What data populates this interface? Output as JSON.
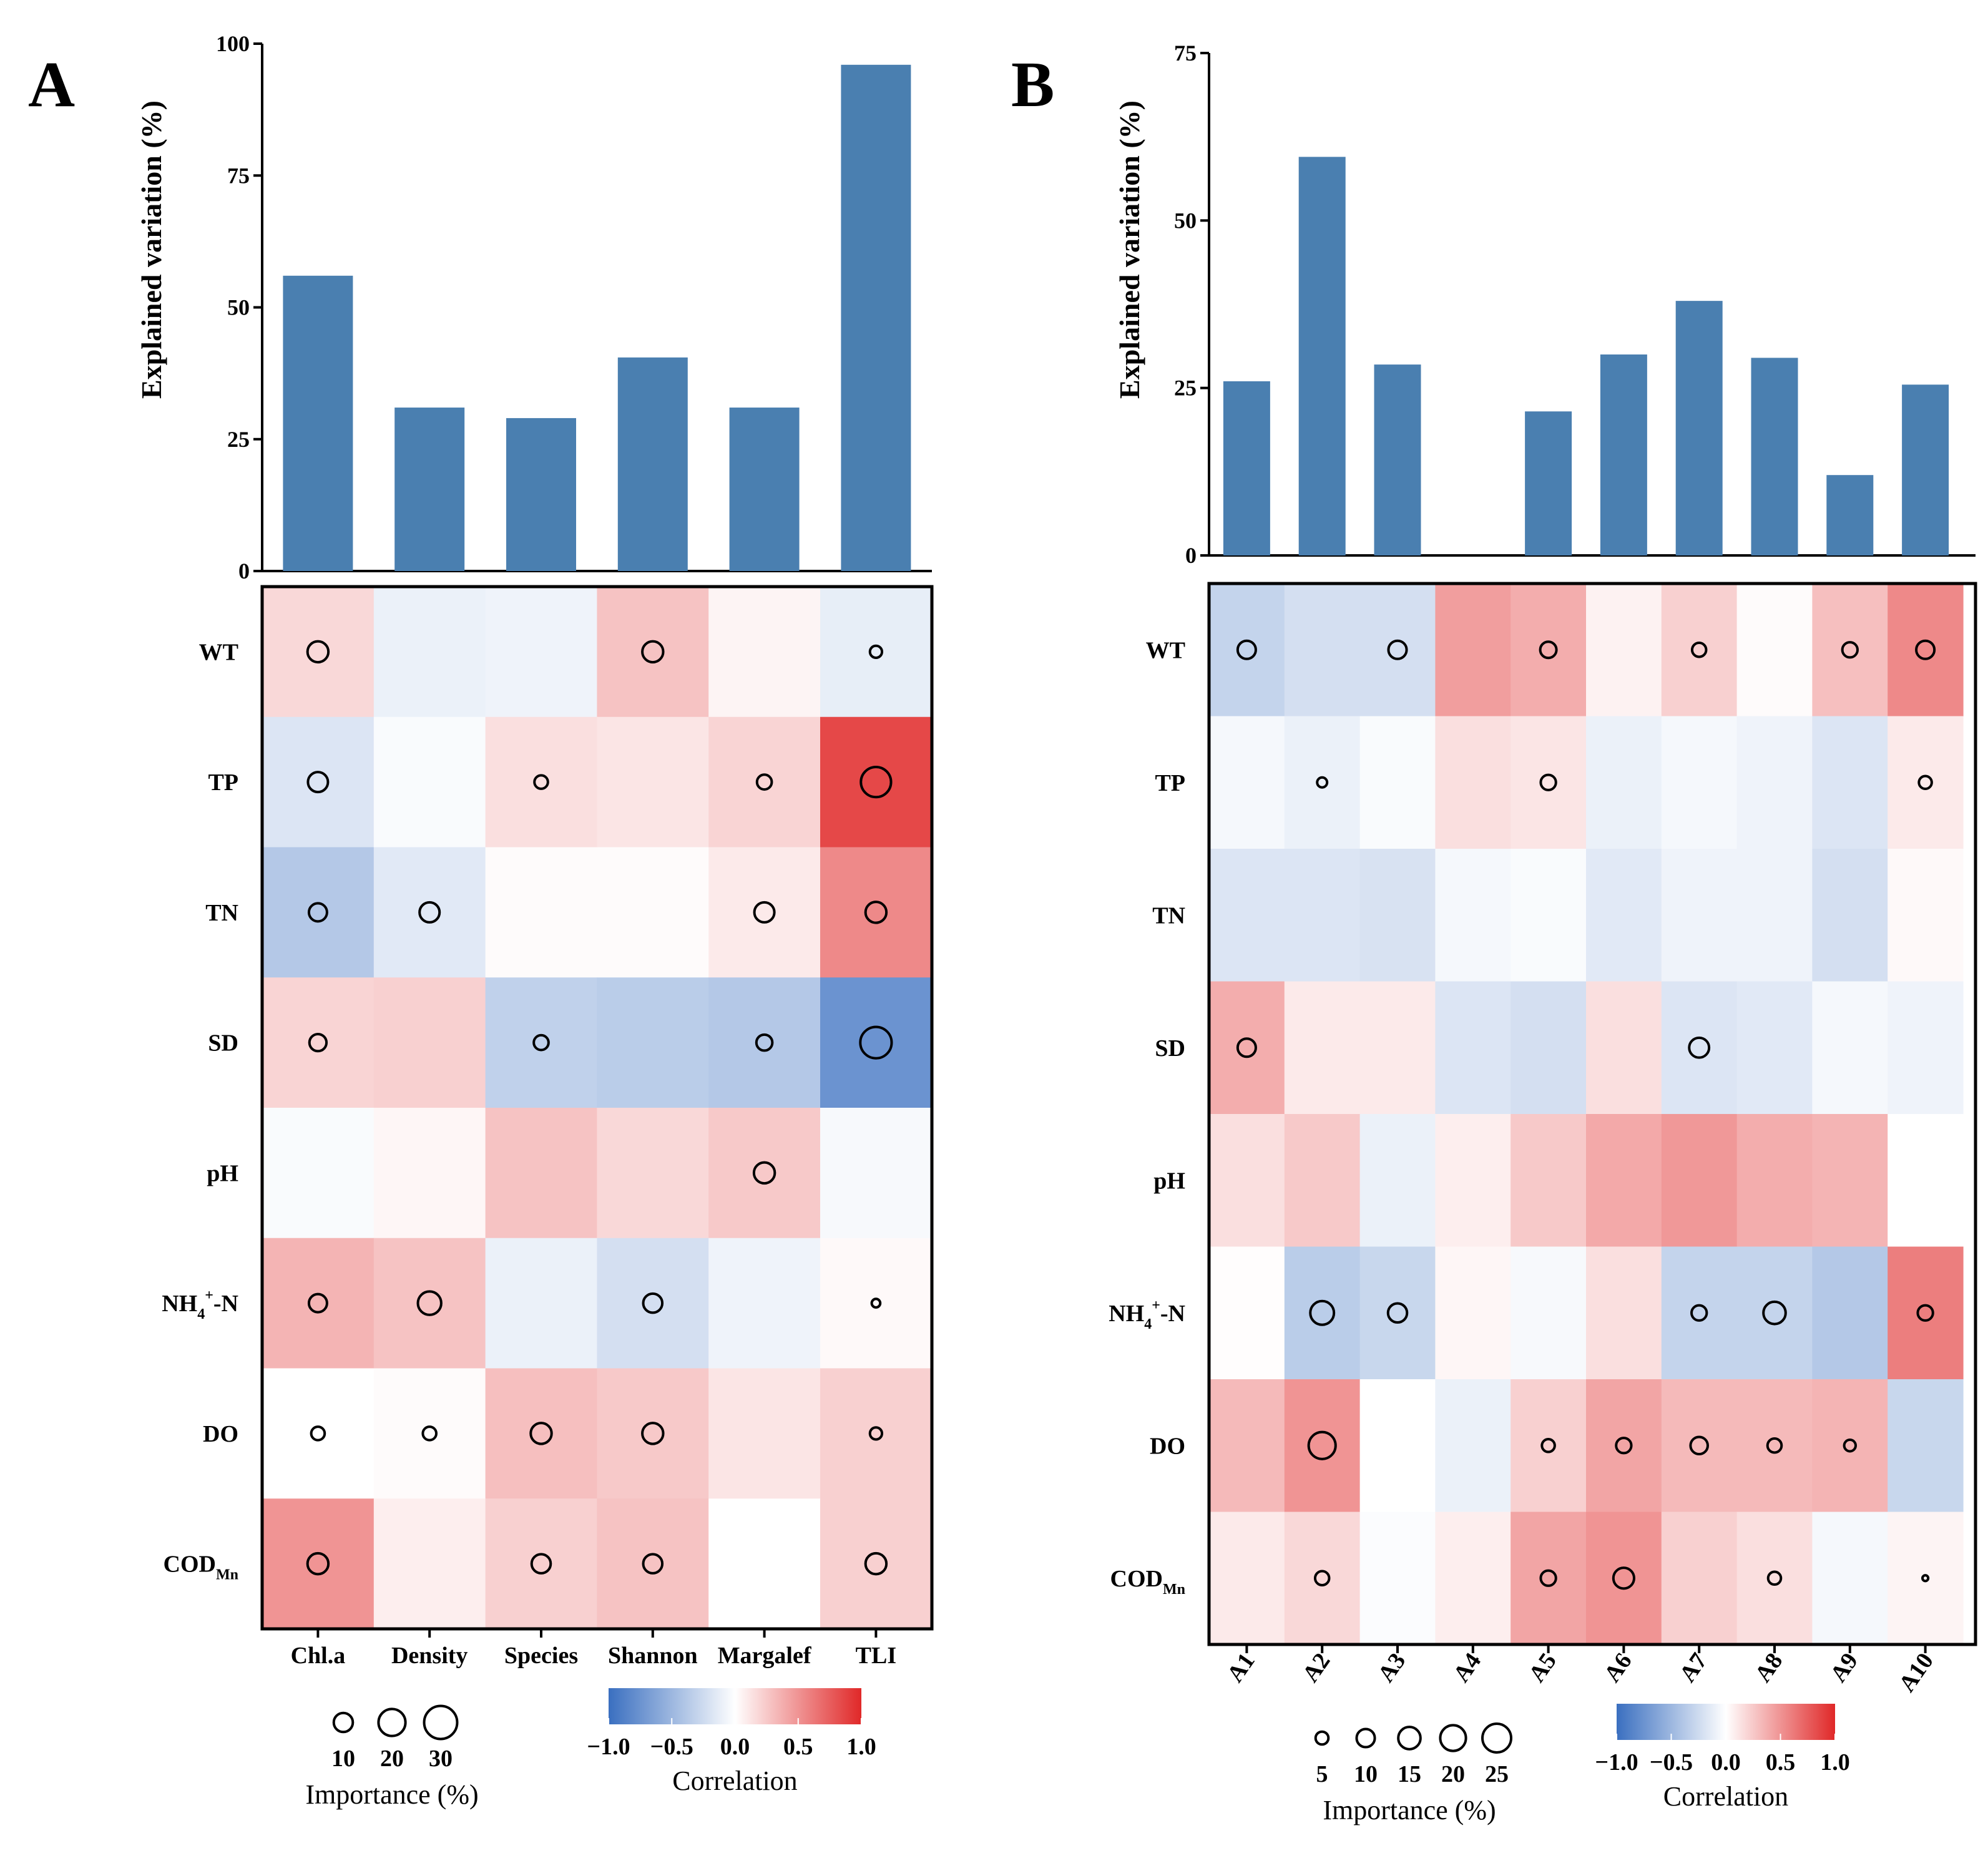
{
  "colors": {
    "bar": "#4a7fb0",
    "neg": "#3a6fc0",
    "mid": "#ffffff",
    "pos": "#e02828"
  },
  "chart_data": [
    {
      "panel": "A",
      "type": "bar",
      "ylabel": "Explained variation (%)",
      "ylim": [
        0,
        100
      ],
      "yticks": [
        "0",
        "25",
        "50",
        "75",
        "100"
      ],
      "categories": [
        "Chl.a",
        "Density",
        "Species",
        "Shannon",
        "Margalef",
        "TLI"
      ],
      "values": [
        56,
        31,
        29,
        40.5,
        31,
        96
      ],
      "heatmap": {
        "type": "heatmap",
        "rows": [
          {
            "label": "WT"
          },
          {
            "label": "TP"
          },
          {
            "label": "TN"
          },
          {
            "label": "SD"
          },
          {
            "label": "pH"
          },
          {
            "label": "NH4+-N",
            "main": "NH",
            "sub": "4",
            "sup": "+",
            "tail": "-N"
          },
          {
            "label": "DO"
          },
          {
            "label": "CODMn",
            "main": "COD",
            "sub": "Mn"
          }
        ],
        "correlation": [
          [
            0.18,
            -0.1,
            -0.08,
            0.28,
            0.05,
            -0.12
          ],
          [
            -0.18,
            -0.03,
            0.15,
            0.12,
            0.2,
            0.85
          ],
          [
            -0.38,
            -0.15,
            0.02,
            0.02,
            0.1,
            0.55
          ],
          [
            0.2,
            0.22,
            -0.32,
            -0.35,
            -0.38,
            -0.75
          ],
          [
            -0.03,
            0.04,
            0.28,
            0.18,
            0.25,
            -0.04
          ],
          [
            0.35,
            0.28,
            -0.1,
            -0.22,
            -0.08,
            0.03
          ],
          [
            0.0,
            0.02,
            0.3,
            0.25,
            0.12,
            0.22
          ],
          [
            0.5,
            0.08,
            0.22,
            0.28,
            0.0,
            0.22
          ]
        ],
        "importance": [
          [
            12,
            null,
            null,
            12,
            null,
            4
          ],
          [
            11,
            null,
            5,
            null,
            6,
            25
          ],
          [
            9,
            11,
            null,
            null,
            11,
            12
          ],
          [
            8,
            null,
            6,
            null,
            7,
            27
          ],
          [
            null,
            null,
            null,
            null,
            12,
            null
          ],
          [
            9,
            15,
            null,
            10,
            null,
            2
          ],
          [
            5,
            5,
            12,
            12,
            null,
            4
          ],
          [
            12,
            null,
            10,
            10,
            null,
            12
          ]
        ],
        "colorbar": {
          "title": "Correlation",
          "ticks": [
            "−1.0",
            "−0.5",
            "0.0",
            "0.5",
            "1.0"
          ],
          "range": [
            -1,
            1
          ]
        },
        "size_legend": {
          "title": "Importance (%)",
          "values": [
            "10",
            "20",
            "30"
          ]
        }
      }
    },
    {
      "panel": "B",
      "type": "bar",
      "ylabel": "Explained variation (%)",
      "ylim": [
        0,
        75
      ],
      "yticks": [
        "0",
        "25",
        "50",
        "75"
      ],
      "categories": [
        "A1",
        "A2",
        "A3",
        "A4",
        "A5",
        "A6",
        "A7",
        "A8",
        "A9",
        "A10"
      ],
      "values": [
        26,
        59.5,
        28.5,
        0,
        21.5,
        30,
        38,
        29.5,
        12,
        25.5
      ],
      "heatmap": {
        "type": "heatmap",
        "rows": [
          {
            "label": "WT"
          },
          {
            "label": "TP"
          },
          {
            "label": "TN"
          },
          {
            "label": "SD"
          },
          {
            "label": "pH"
          },
          {
            "label": "NH4+-N",
            "main": "NH",
            "sub": "4",
            "sup": "+",
            "tail": "-N"
          },
          {
            "label": "DO"
          },
          {
            "label": "CODMn",
            "main": "COD",
            "sub": "Mn"
          }
        ],
        "correlation": [
          [
            -0.3,
            -0.22,
            -0.22,
            0.45,
            0.38,
            0.06,
            0.22,
            0.02,
            0.3,
            0.55
          ],
          [
            -0.05,
            -0.1,
            -0.03,
            0.15,
            0.12,
            -0.1,
            -0.05,
            -0.08,
            -0.18,
            0.1
          ],
          [
            -0.18,
            -0.18,
            -0.2,
            -0.05,
            -0.03,
            -0.15,
            -0.08,
            -0.08,
            -0.22,
            0.03
          ],
          [
            0.38,
            0.1,
            0.1,
            -0.18,
            -0.22,
            0.15,
            -0.18,
            -0.15,
            -0.05,
            -0.08
          ],
          [
            0.15,
            0.25,
            -0.1,
            0.08,
            0.25,
            0.4,
            0.48,
            0.38,
            0.35,
            0.0
          ],
          [
            0.01,
            -0.35,
            -0.28,
            0.04,
            -0.04,
            0.15,
            -0.3,
            -0.3,
            -0.38,
            0.6
          ],
          [
            0.32,
            0.5,
            0.0,
            -0.1,
            0.22,
            0.42,
            0.32,
            0.32,
            0.35,
            -0.28
          ],
          [
            0.1,
            0.18,
            -0.02,
            0.08,
            0.42,
            0.5,
            0.22,
            0.15,
            -0.05,
            0.05
          ]
        ],
        "importance": [
          [
            10,
            null,
            10,
            null,
            8,
            null,
            6,
            null,
            7,
            10
          ],
          [
            null,
            3,
            null,
            null,
            7,
            null,
            null,
            null,
            null,
            5
          ],
          [
            null,
            null,
            null,
            null,
            null,
            null,
            null,
            null,
            null,
            null
          ],
          [
            10,
            null,
            null,
            null,
            null,
            null,
            12,
            null,
            null,
            null
          ],
          [
            null,
            null,
            null,
            null,
            null,
            null,
            null,
            null,
            null,
            null
          ],
          [
            null,
            17,
            11,
            null,
            null,
            null,
            7,
            15,
            null,
            7
          ],
          [
            null,
            22,
            null,
            null,
            5,
            7,
            9,
            6,
            4,
            null
          ],
          [
            null,
            6,
            null,
            null,
            7,
            13,
            null,
            5,
            null,
            1
          ]
        ],
        "colorbar": {
          "title": "Correlation",
          "ticks": [
            "−1.0",
            "−0.5",
            "0.0",
            "0.5",
            "1.0"
          ],
          "range": [
            -1,
            1
          ]
        },
        "size_legend": {
          "title": "Importance (%)",
          "values": [
            "5",
            "10",
            "15",
            "20",
            "25"
          ]
        }
      }
    }
  ]
}
